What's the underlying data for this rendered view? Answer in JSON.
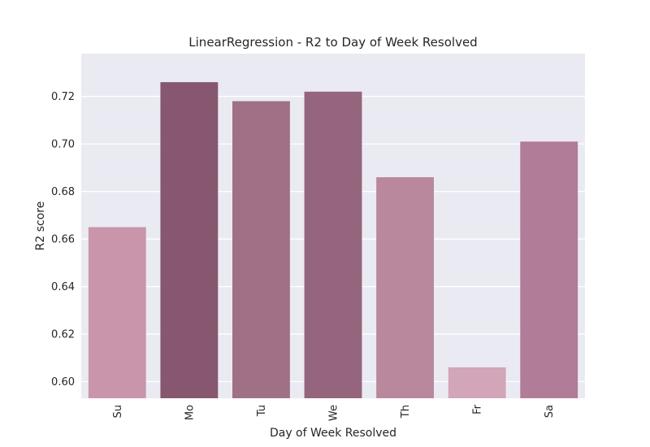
{
  "chart_data": {
    "type": "bar",
    "title": "LinearRegression - R2 to Day of Week Resolved",
    "xlabel": "Day of Week Resolved",
    "ylabel": "R2 score",
    "categories": [
      "Su",
      "Mo",
      "Tu",
      "We",
      "Th",
      "Fr",
      "Sa"
    ],
    "values": [
      0.665,
      0.726,
      0.718,
      0.722,
      0.686,
      0.606,
      0.701
    ],
    "colors": [
      "#c895aa",
      "#86576f",
      "#a07086",
      "#95647d",
      "#b9889d",
      "#d2a5b9",
      "#b07c97"
    ],
    "ylim": [
      0.593,
      0.738
    ],
    "yticks": [
      "0.60",
      "0.62",
      "0.64",
      "0.66",
      "0.68",
      "0.70",
      "0.72"
    ],
    "ytick_values": [
      0.6,
      0.62,
      0.64,
      0.66,
      0.68,
      0.7,
      0.72
    ],
    "grid": true,
    "legend": "none",
    "background_color": "#eaeaf2"
  }
}
